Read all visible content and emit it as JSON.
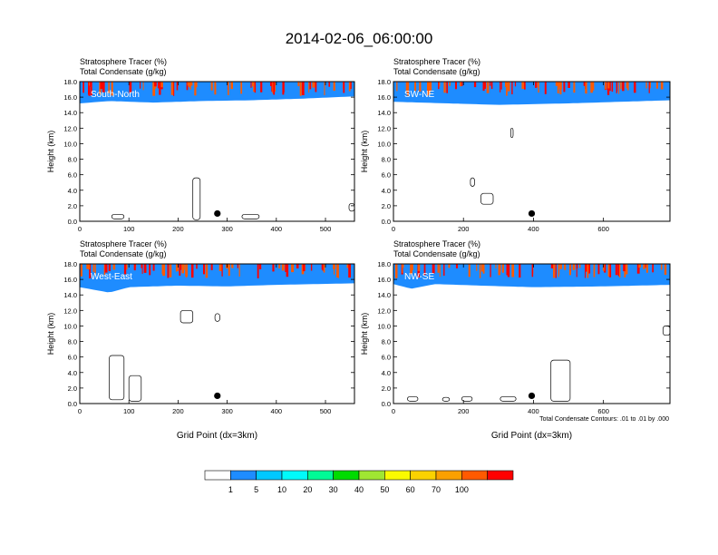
{
  "figure": {
    "title": "2014-02-06_06:00:00",
    "contour_note": "Total Condensate Contours: .01 to .01 by .000",
    "colorbar": {
      "colors": [
        "#ffffff",
        "#1e8cff",
        "#00c8ff",
        "#00fafa",
        "#00fa96",
        "#00dc00",
        "#a0e632",
        "#fafa00",
        "#fad200",
        "#faa000",
        "#ff5a00",
        "#ff0000"
      ],
      "labels": [
        "1",
        "5",
        "10",
        "20",
        "30",
        "40",
        "50",
        "60",
        "70",
        "100"
      ]
    }
  },
  "chart_data": [
    {
      "type": "heatmap",
      "panel": "South-North",
      "label_line1": "Stratosphere Tracer   (%)",
      "label_line2": "Total Condensate   (g/kg)",
      "ylabel": "Height (km)",
      "xlabel": "",
      "xlim": [
        0,
        559
      ],
      "ylim": [
        0,
        18
      ],
      "xticks": [
        "0",
        "100",
        "200",
        "300",
        "400",
        "500"
      ],
      "xtick_values": [
        0,
        100,
        200,
        300,
        400,
        500
      ],
      "yticks": [
        "0.0",
        "2.0",
        "4.0",
        "6.0",
        "8.0",
        "10.0",
        "12.0",
        "14.0",
        "16.0",
        "18.0"
      ],
      "tracer_boundary_km": [
        [
          0,
          15.2
        ],
        [
          60,
          15.5
        ],
        [
          150,
          15.3
        ],
        [
          250,
          15.5
        ],
        [
          350,
          15.6
        ],
        [
          450,
          15.8
        ],
        [
          559,
          16.1
        ]
      ],
      "marker": {
        "x": 280,
        "y": 1.0
      },
      "contours": [
        {
          "x": [
            65,
            90
          ],
          "y": [
            0.3,
            0.9
          ]
        },
        {
          "x": [
            230,
            245
          ],
          "y": [
            0.2,
            5.6
          ]
        },
        {
          "x": [
            330,
            365
          ],
          "y": [
            0.3,
            0.9
          ]
        },
        {
          "x": [
            548,
            559
          ],
          "y": [
            1.3,
            2.3
          ]
        }
      ]
    },
    {
      "type": "heatmap",
      "panel": "SW-NE",
      "label_line1": "Stratosphere Tracer   (%)",
      "label_line2": "Total Condensate   (g/kg)",
      "ylabel": "Height (km)",
      "xlabel": "",
      "xlim": [
        0,
        790
      ],
      "ylim": [
        0,
        18
      ],
      "xticks": [
        "0",
        "200",
        "400",
        "600"
      ],
      "xtick_values": [
        0,
        200,
        400,
        600
      ],
      "yticks": [
        "0.0",
        "2.0",
        "4.0",
        "6.0",
        "8.0",
        "10.0",
        "12.0",
        "14.0",
        "16.0",
        "18.0"
      ],
      "tracer_boundary_km": [
        [
          0,
          15.4
        ],
        [
          150,
          15.2
        ],
        [
          300,
          15.0
        ],
        [
          500,
          15.2
        ],
        [
          650,
          15.4
        ],
        [
          790,
          15.6
        ]
      ],
      "marker": {
        "x": 395,
        "y": 1.0
      },
      "contours": [
        {
          "x": [
            220,
            232
          ],
          "y": [
            4.5,
            5.6
          ]
        },
        {
          "x": [
            250,
            285
          ],
          "y": [
            2.2,
            3.6
          ]
        },
        {
          "x": [
            335,
            342
          ],
          "y": [
            10.8,
            12.0
          ]
        }
      ]
    },
    {
      "type": "heatmap",
      "panel": "West-East",
      "label_line1": "Stratosphere Tracer   (%)",
      "label_line2": "Total Condensate   (g/kg)",
      "ylabel": "Height (km)",
      "xlabel": "Grid Point (dx=3km)",
      "xlim": [
        0,
        559
      ],
      "ylim": [
        0,
        18
      ],
      "xticks": [
        "0",
        "100",
        "200",
        "300",
        "400",
        "500"
      ],
      "xtick_values": [
        0,
        100,
        200,
        300,
        400,
        500
      ],
      "yticks": [
        "0.0",
        "2.0",
        "4.0",
        "6.0",
        "8.0",
        "10.0",
        "12.0",
        "14.0",
        "16.0",
        "18.0"
      ],
      "tracer_boundary_km": [
        [
          0,
          15.0
        ],
        [
          60,
          14.3
        ],
        [
          100,
          15.0
        ],
        [
          200,
          15.2
        ],
        [
          300,
          15.1
        ],
        [
          400,
          15.3
        ],
        [
          559,
          15.5
        ]
      ],
      "marker": {
        "x": 280,
        "y": 1.0
      },
      "contours": [
        {
          "x": [
            60,
            90
          ],
          "y": [
            0.5,
            6.2
          ]
        },
        {
          "x": [
            100,
            125
          ],
          "y": [
            0.3,
            3.6
          ]
        },
        {
          "x": [
            205,
            230
          ],
          "y": [
            10.4,
            12.0
          ]
        },
        {
          "x": [
            275,
            285
          ],
          "y": [
            10.6,
            11.6
          ]
        }
      ]
    },
    {
      "type": "heatmap",
      "panel": "NW-SE",
      "label_line1": "Stratosphere Tracer   (%)",
      "label_line2": "Total Condensate   (g/kg)",
      "ylabel": "Height (km)",
      "xlabel": "Grid Point (dx=3km)",
      "xlim": [
        0,
        790
      ],
      "ylim": [
        0,
        18
      ],
      "xticks": [
        "0",
        "200",
        "400",
        "600"
      ],
      "xtick_values": [
        0,
        200,
        400,
        600
      ],
      "yticks": [
        "0.0",
        "2.0",
        "4.0",
        "6.0",
        "8.0",
        "10.0",
        "12.0",
        "14.0",
        "16.0",
        "18.0"
      ],
      "tracer_boundary_km": [
        [
          0,
          15.4
        ],
        [
          50,
          14.8
        ],
        [
          120,
          15.4
        ],
        [
          250,
          15.2
        ],
        [
          400,
          15.0
        ],
        [
          600,
          15.1
        ],
        [
          790,
          15.3
        ]
      ],
      "marker": {
        "x": 395,
        "y": 1.0
      },
      "contours": [
        {
          "x": [
            40,
            70
          ],
          "y": [
            0.3,
            0.9
          ]
        },
        {
          "x": [
            140,
            160
          ],
          "y": [
            0.3,
            0.8
          ]
        },
        {
          "x": [
            195,
            225
          ],
          "y": [
            0.3,
            0.9
          ]
        },
        {
          "x": [
            305,
            350
          ],
          "y": [
            0.3,
            0.9
          ]
        },
        {
          "x": [
            450,
            505
          ],
          "y": [
            0.3,
            5.6
          ]
        },
        {
          "x": [
            770,
            790
          ],
          "y": [
            8.8,
            10.0
          ]
        }
      ]
    }
  ]
}
